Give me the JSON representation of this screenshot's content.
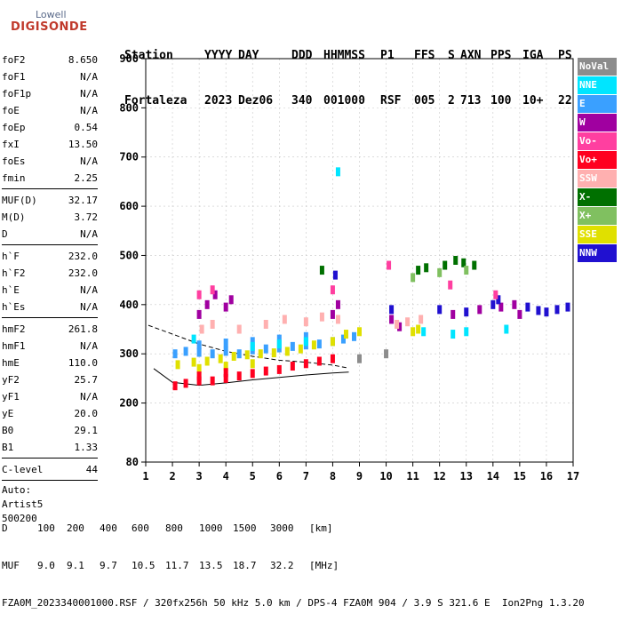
{
  "logo": {
    "top": "Lowell",
    "bottom": "DIGISONDE"
  },
  "header": {
    "line1": [
      "Station",
      "YYYY",
      "DAY",
      "DDD",
      "HHMMSS",
      "P1",
      "FFS",
      "S",
      "AXN",
      "PPS",
      "IGA",
      "PS"
    ],
    "line2": [
      "Fortaleza",
      "2023",
      "Dez06",
      "340",
      "001000",
      "RSF",
      "005",
      "2",
      "713",
      "100",
      "10+",
      "22"
    ]
  },
  "params": {
    "group1": [
      {
        "label": "foF2",
        "value": "8.650"
      },
      {
        "label": "foF1",
        "value": "N/A"
      },
      {
        "label": "foF1p",
        "value": "N/A"
      },
      {
        "label": "foE",
        "value": "N/A"
      },
      {
        "label": "foEp",
        "value": "0.54"
      },
      {
        "label": "fxI",
        "value": "13.50"
      },
      {
        "label": "foEs",
        "value": "N/A"
      },
      {
        "label": "fmin",
        "value": "2.25"
      }
    ],
    "group2": [
      {
        "label": "MUF(D)",
        "value": "32.17"
      },
      {
        "label": "M(D)",
        "value": "3.72"
      },
      {
        "label": "D",
        "value": "N/A"
      }
    ],
    "group3": [
      {
        "label": "h`F",
        "value": "232.0"
      },
      {
        "label": "h`F2",
        "value": "232.0"
      },
      {
        "label": "h`E",
        "value": "N/A"
      },
      {
        "label": "h`Es",
        "value": "N/A"
      }
    ],
    "group4": [
      {
        "label": "hmF2",
        "value": "261.8"
      },
      {
        "label": "hmF1",
        "value": "N/A"
      },
      {
        "label": "hmE",
        "value": "110.0"
      },
      {
        "label": "yF2",
        "value": "25.7"
      },
      {
        "label": "yF1",
        "value": "N/A"
      },
      {
        "label": "yE",
        "value": "20.0"
      },
      {
        "label": "B0",
        "value": "29.1"
      },
      {
        "label": "B1",
        "value": "1.33"
      }
    ],
    "group5": [
      {
        "label": "C-level",
        "value": "44"
      }
    ],
    "auto": [
      "Auto:",
      "Artist5",
      "500200"
    ]
  },
  "legend": [
    {
      "label": "NoVal",
      "color": "#8c8c8c"
    },
    {
      "label": "NNE",
      "color": "#00e5ff"
    },
    {
      "label": "E",
      "color": "#3aa0ff"
    },
    {
      "label": "W",
      "color": "#a000a0"
    },
    {
      "label": "Vo-",
      "color": "#ff3fa0"
    },
    {
      "label": "Vo+",
      "color": "#ff0020"
    },
    {
      "label": "SSW",
      "color": "#ffb0b0"
    },
    {
      "label": "X-",
      "color": "#007000"
    },
    {
      "label": "X+",
      "color": "#80c060"
    },
    {
      "label": "SSE",
      "color": "#e0e000"
    },
    {
      "label": "NNW",
      "color": "#2010d0"
    }
  ],
  "chart_data": {
    "type": "scatter",
    "x_range": [
      1,
      17
    ],
    "y_range": [
      80,
      900
    ],
    "x_ticks": [
      1,
      2,
      3,
      4,
      5,
      6,
      7,
      8,
      9,
      10,
      11,
      12,
      13,
      14,
      15,
      16,
      17
    ],
    "y_ticks": [
      80,
      200,
      300,
      400,
      500,
      600,
      700,
      800,
      900
    ],
    "grid": true,
    "series": [
      {
        "name": "E",
        "points": [
          [
            2.1,
            300
          ],
          [
            2.5,
            305
          ],
          [
            3,
            303
          ],
          [
            3.5,
            300
          ],
          [
            4,
            305
          ],
          [
            4.5,
            300
          ],
          [
            5,
            308
          ],
          [
            5.5,
            310
          ],
          [
            6,
            312
          ],
          [
            6.5,
            315
          ],
          [
            7,
            318
          ],
          [
            7.5,
            320
          ],
          [
            8,
            325
          ],
          [
            8.4,
            330
          ],
          [
            8.8,
            335
          ],
          [
            3,
            318
          ],
          [
            4,
            322
          ],
          [
            5,
            325
          ],
          [
            6,
            330
          ],
          [
            7,
            335
          ]
        ]
      },
      {
        "name": "SSE",
        "points": [
          [
            2.2,
            278
          ],
          [
            2.8,
            283
          ],
          [
            3.3,
            285
          ],
          [
            3.8,
            290
          ],
          [
            4.3,
            295
          ],
          [
            4.8,
            298
          ],
          [
            5.3,
            300
          ],
          [
            5.8,
            302
          ],
          [
            6.3,
            305
          ],
          [
            6.8,
            310
          ],
          [
            7.3,
            318
          ],
          [
            8,
            325
          ],
          [
            8.5,
            340
          ],
          [
            9,
            345
          ],
          [
            11,
            345
          ],
          [
            11.2,
            350
          ],
          [
            3,
            270
          ],
          [
            4,
            275
          ],
          [
            5,
            280
          ]
        ]
      },
      {
        "name": "Vo+",
        "points": [
          [
            2.1,
            235
          ],
          [
            2.5,
            240
          ],
          [
            3,
            245
          ],
          [
            3.5,
            245
          ],
          [
            4,
            250
          ],
          [
            4.5,
            255
          ],
          [
            5,
            260
          ],
          [
            5.5,
            265
          ],
          [
            6,
            268
          ],
          [
            6.5,
            275
          ],
          [
            7,
            280
          ],
          [
            7.5,
            285
          ],
          [
            8,
            290
          ],
          [
            3,
            255
          ],
          [
            4,
            262
          ]
        ]
      },
      {
        "name": "W",
        "points": [
          [
            3,
            380
          ],
          [
            3.3,
            400
          ],
          [
            3.6,
            420
          ],
          [
            4,
            395
          ],
          [
            4.2,
            410
          ],
          [
            8,
            380
          ],
          [
            8.2,
            400
          ],
          [
            10.2,
            370
          ],
          [
            10.5,
            355
          ],
          [
            12.5,
            380
          ],
          [
            13.5,
            390
          ],
          [
            14.3,
            395
          ],
          [
            14.8,
            400
          ],
          [
            15,
            380
          ]
        ]
      },
      {
        "name": "SSW",
        "points": [
          [
            3.1,
            350
          ],
          [
            3.5,
            360
          ],
          [
            4.5,
            350
          ],
          [
            5.5,
            360
          ],
          [
            6.2,
            370
          ],
          [
            7,
            365
          ],
          [
            7.6,
            375
          ],
          [
            8.2,
            370
          ],
          [
            10.4,
            360
          ],
          [
            10.8,
            365
          ],
          [
            11.3,
            370
          ]
        ]
      },
      {
        "name": "X-",
        "points": [
          [
            11.2,
            470
          ],
          [
            11.5,
            475
          ],
          [
            12.2,
            480
          ],
          [
            12.6,
            490
          ],
          [
            12.9,
            485
          ],
          [
            13.3,
            480
          ],
          [
            7.6,
            470
          ]
        ]
      },
      {
        "name": "NNE",
        "points": [
          [
            2.8,
            330
          ],
          [
            5,
            315
          ],
          [
            6,
            320
          ],
          [
            7,
            325
          ],
          [
            8.2,
            670
          ],
          [
            11.4,
            345
          ],
          [
            12.5,
            340
          ],
          [
            13,
            345
          ],
          [
            14.5,
            350
          ]
        ]
      },
      {
        "name": "NNW",
        "points": [
          [
            8.1,
            460
          ],
          [
            10.2,
            390
          ],
          [
            12,
            390
          ],
          [
            13,
            385
          ],
          [
            14,
            400
          ],
          [
            14.2,
            410
          ],
          [
            15.3,
            395
          ],
          [
            15.7,
            388
          ],
          [
            16,
            385
          ],
          [
            16.4,
            390
          ],
          [
            16.8,
            395
          ]
        ]
      },
      {
        "name": "Vo-",
        "points": [
          [
            3,
            420
          ],
          [
            3.5,
            430
          ],
          [
            8,
            430
          ],
          [
            10.1,
            480
          ],
          [
            12.4,
            440
          ],
          [
            14.1,
            420
          ]
        ]
      },
      {
        "name": "X+",
        "points": [
          [
            11,
            455
          ],
          [
            12,
            465
          ],
          [
            13,
            470
          ]
        ]
      },
      {
        "name": "NoVal",
        "points": [
          [
            9,
            290
          ],
          [
            10,
            300
          ]
        ]
      }
    ],
    "o_trace": [
      [
        1.3,
        270
      ],
      [
        2,
        242
      ],
      [
        3,
        236
      ],
      [
        4,
        241
      ],
      [
        5,
        247
      ],
      [
        6,
        252
      ],
      [
        7,
        257
      ],
      [
        8,
        261
      ],
      [
        8.6,
        263
      ]
    ],
    "x_trace": [
      [
        1.1,
        358
      ],
      [
        2,
        340
      ],
      [
        3,
        320
      ],
      [
        4,
        305
      ],
      [
        5,
        295
      ],
      [
        6,
        287
      ],
      [
        7,
        283
      ],
      [
        8,
        277
      ],
      [
        8.6,
        271
      ]
    ]
  },
  "footer": {
    "d_row": [
      "D",
      "100",
      "200",
      "400",
      "600",
      "800",
      "1000",
      "1500",
      "3000",
      "[km]"
    ],
    "muf_row": [
      "MUF",
      "9.0",
      "9.1",
      "9.7",
      "10.5",
      "11.7",
      "13.5",
      "18.7",
      "32.2",
      "[MHz]"
    ],
    "info": "FZA0M_2023340001000.RSF / 320fx256h 50 kHz 5.0 km / DPS-4 FZA0M 904 / 3.9 S 321.6 E  Ion2Png 1.3.20"
  }
}
